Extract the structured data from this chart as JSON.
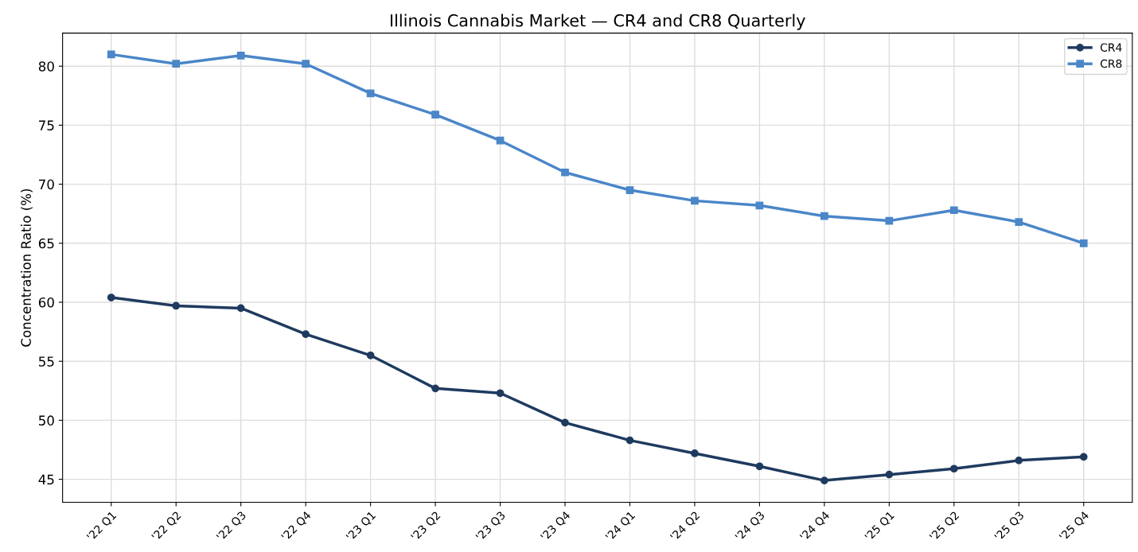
{
  "chart_data": {
    "type": "line",
    "title": "Illinois Cannabis Market — CR4 and CR8 Quarterly",
    "ylabel": "Concentration Ratio (%)",
    "categories": [
      "'22 Q1",
      "'22 Q2",
      "'22 Q3",
      "'22 Q4",
      "'23 Q1",
      "'23 Q2",
      "'23 Q3",
      "'23 Q4",
      "'24 Q1",
      "'24 Q2",
      "'24 Q3",
      "'24 Q4",
      "'25 Q1",
      "'25 Q2",
      "'25 Q3",
      "'25 Q4"
    ],
    "series": [
      {
        "name": "CR4",
        "color": "#1f3a5f",
        "marker": "circle",
        "values": [
          60.4,
          59.7,
          59.5,
          57.3,
          55.5,
          52.7,
          52.3,
          49.8,
          48.3,
          47.2,
          46.1,
          44.9,
          45.4,
          45.9,
          46.6,
          46.9
        ]
      },
      {
        "name": "CR8",
        "color": "#4a86c8",
        "marker": "square",
        "values": [
          81.0,
          80.2,
          80.9,
          80.2,
          77.7,
          75.9,
          73.7,
          71.0,
          69.5,
          68.6,
          68.2,
          67.3,
          66.9,
          67.8,
          66.8,
          65.0
        ]
      }
    ],
    "ylim": [
      43.05,
      82.8
    ],
    "yticks": [
      45,
      50,
      55,
      60,
      65,
      70,
      75,
      80
    ],
    "grid": true,
    "legend": "top right",
    "line_style": "solid"
  }
}
